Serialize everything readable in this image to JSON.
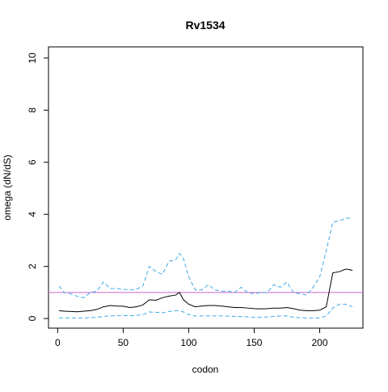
{
  "chart_data": {
    "type": "line",
    "title": "Rv1534",
    "x_label": "codon",
    "y_label": "omega (dN/dS)",
    "x": [
      1,
      5,
      10,
      15,
      20,
      25,
      30,
      35,
      40,
      45,
      50,
      55,
      60,
      65,
      70,
      75,
      80,
      85,
      90,
      93,
      96,
      100,
      105,
      110,
      115,
      120,
      125,
      130,
      135,
      140,
      145,
      150,
      155,
      160,
      165,
      170,
      175,
      180,
      185,
      190,
      195,
      200,
      205,
      210,
      215,
      220,
      225
    ],
    "series": [
      {
        "color": "#000000",
        "dash": false,
        "values": [
          0.3,
          0.28,
          0.27,
          0.26,
          0.28,
          0.3,
          0.35,
          0.45,
          0.5,
          0.48,
          0.47,
          0.42,
          0.45,
          0.52,
          0.72,
          0.7,
          0.8,
          0.86,
          0.9,
          1.0,
          0.72,
          0.55,
          0.45,
          0.48,
          0.5,
          0.5,
          0.48,
          0.45,
          0.42,
          0.42,
          0.4,
          0.38,
          0.37,
          0.38,
          0.4,
          0.4,
          0.42,
          0.38,
          0.32,
          0.3,
          0.3,
          0.32,
          0.45,
          1.75,
          1.8,
          1.9,
          1.85
        ]
      },
      {
        "color": "#3fa9e6",
        "dash": true,
        "values": [
          1.25,
          1.0,
          0.95,
          0.85,
          0.8,
          1.0,
          1.05,
          1.4,
          1.15,
          1.15,
          1.12,
          1.1,
          1.12,
          1.25,
          2.0,
          1.8,
          1.7,
          2.2,
          2.25,
          2.5,
          2.3,
          1.6,
          1.1,
          1.1,
          1.3,
          1.1,
          1.05,
          1.05,
          1.0,
          1.2,
          1.0,
          0.95,
          1.0,
          1.0,
          1.3,
          1.2,
          1.4,
          1.0,
          0.95,
          0.9,
          1.2,
          1.6,
          2.6,
          3.7,
          3.75,
          3.85,
          3.85
        ]
      },
      {
        "color": "#3fa9e6",
        "dash": true,
        "values": [
          0.02,
          0.02,
          0.02,
          0.02,
          0.02,
          0.03,
          0.05,
          0.08,
          0.1,
          0.11,
          0.12,
          0.1,
          0.12,
          0.15,
          0.25,
          0.24,
          0.22,
          0.27,
          0.3,
          0.3,
          0.25,
          0.15,
          0.1,
          0.1,
          0.1,
          0.1,
          0.1,
          0.09,
          0.08,
          0.08,
          0.06,
          0.05,
          0.05,
          0.06,
          0.08,
          0.1,
          0.1,
          0.05,
          0.03,
          0.02,
          0.02,
          0.02,
          0.1,
          0.4,
          0.55,
          0.55,
          0.45
        ]
      }
    ],
    "hline": {
      "value": 1,
      "color": "#cc66cc"
    },
    "xlim": [
      -7,
      233
    ],
    "xticks": [
      0,
      50,
      100,
      150,
      200
    ],
    "ylim": [
      -0.37,
      10.43
    ],
    "yticks": [
      0,
      2,
      4,
      6,
      8,
      10
    ]
  }
}
